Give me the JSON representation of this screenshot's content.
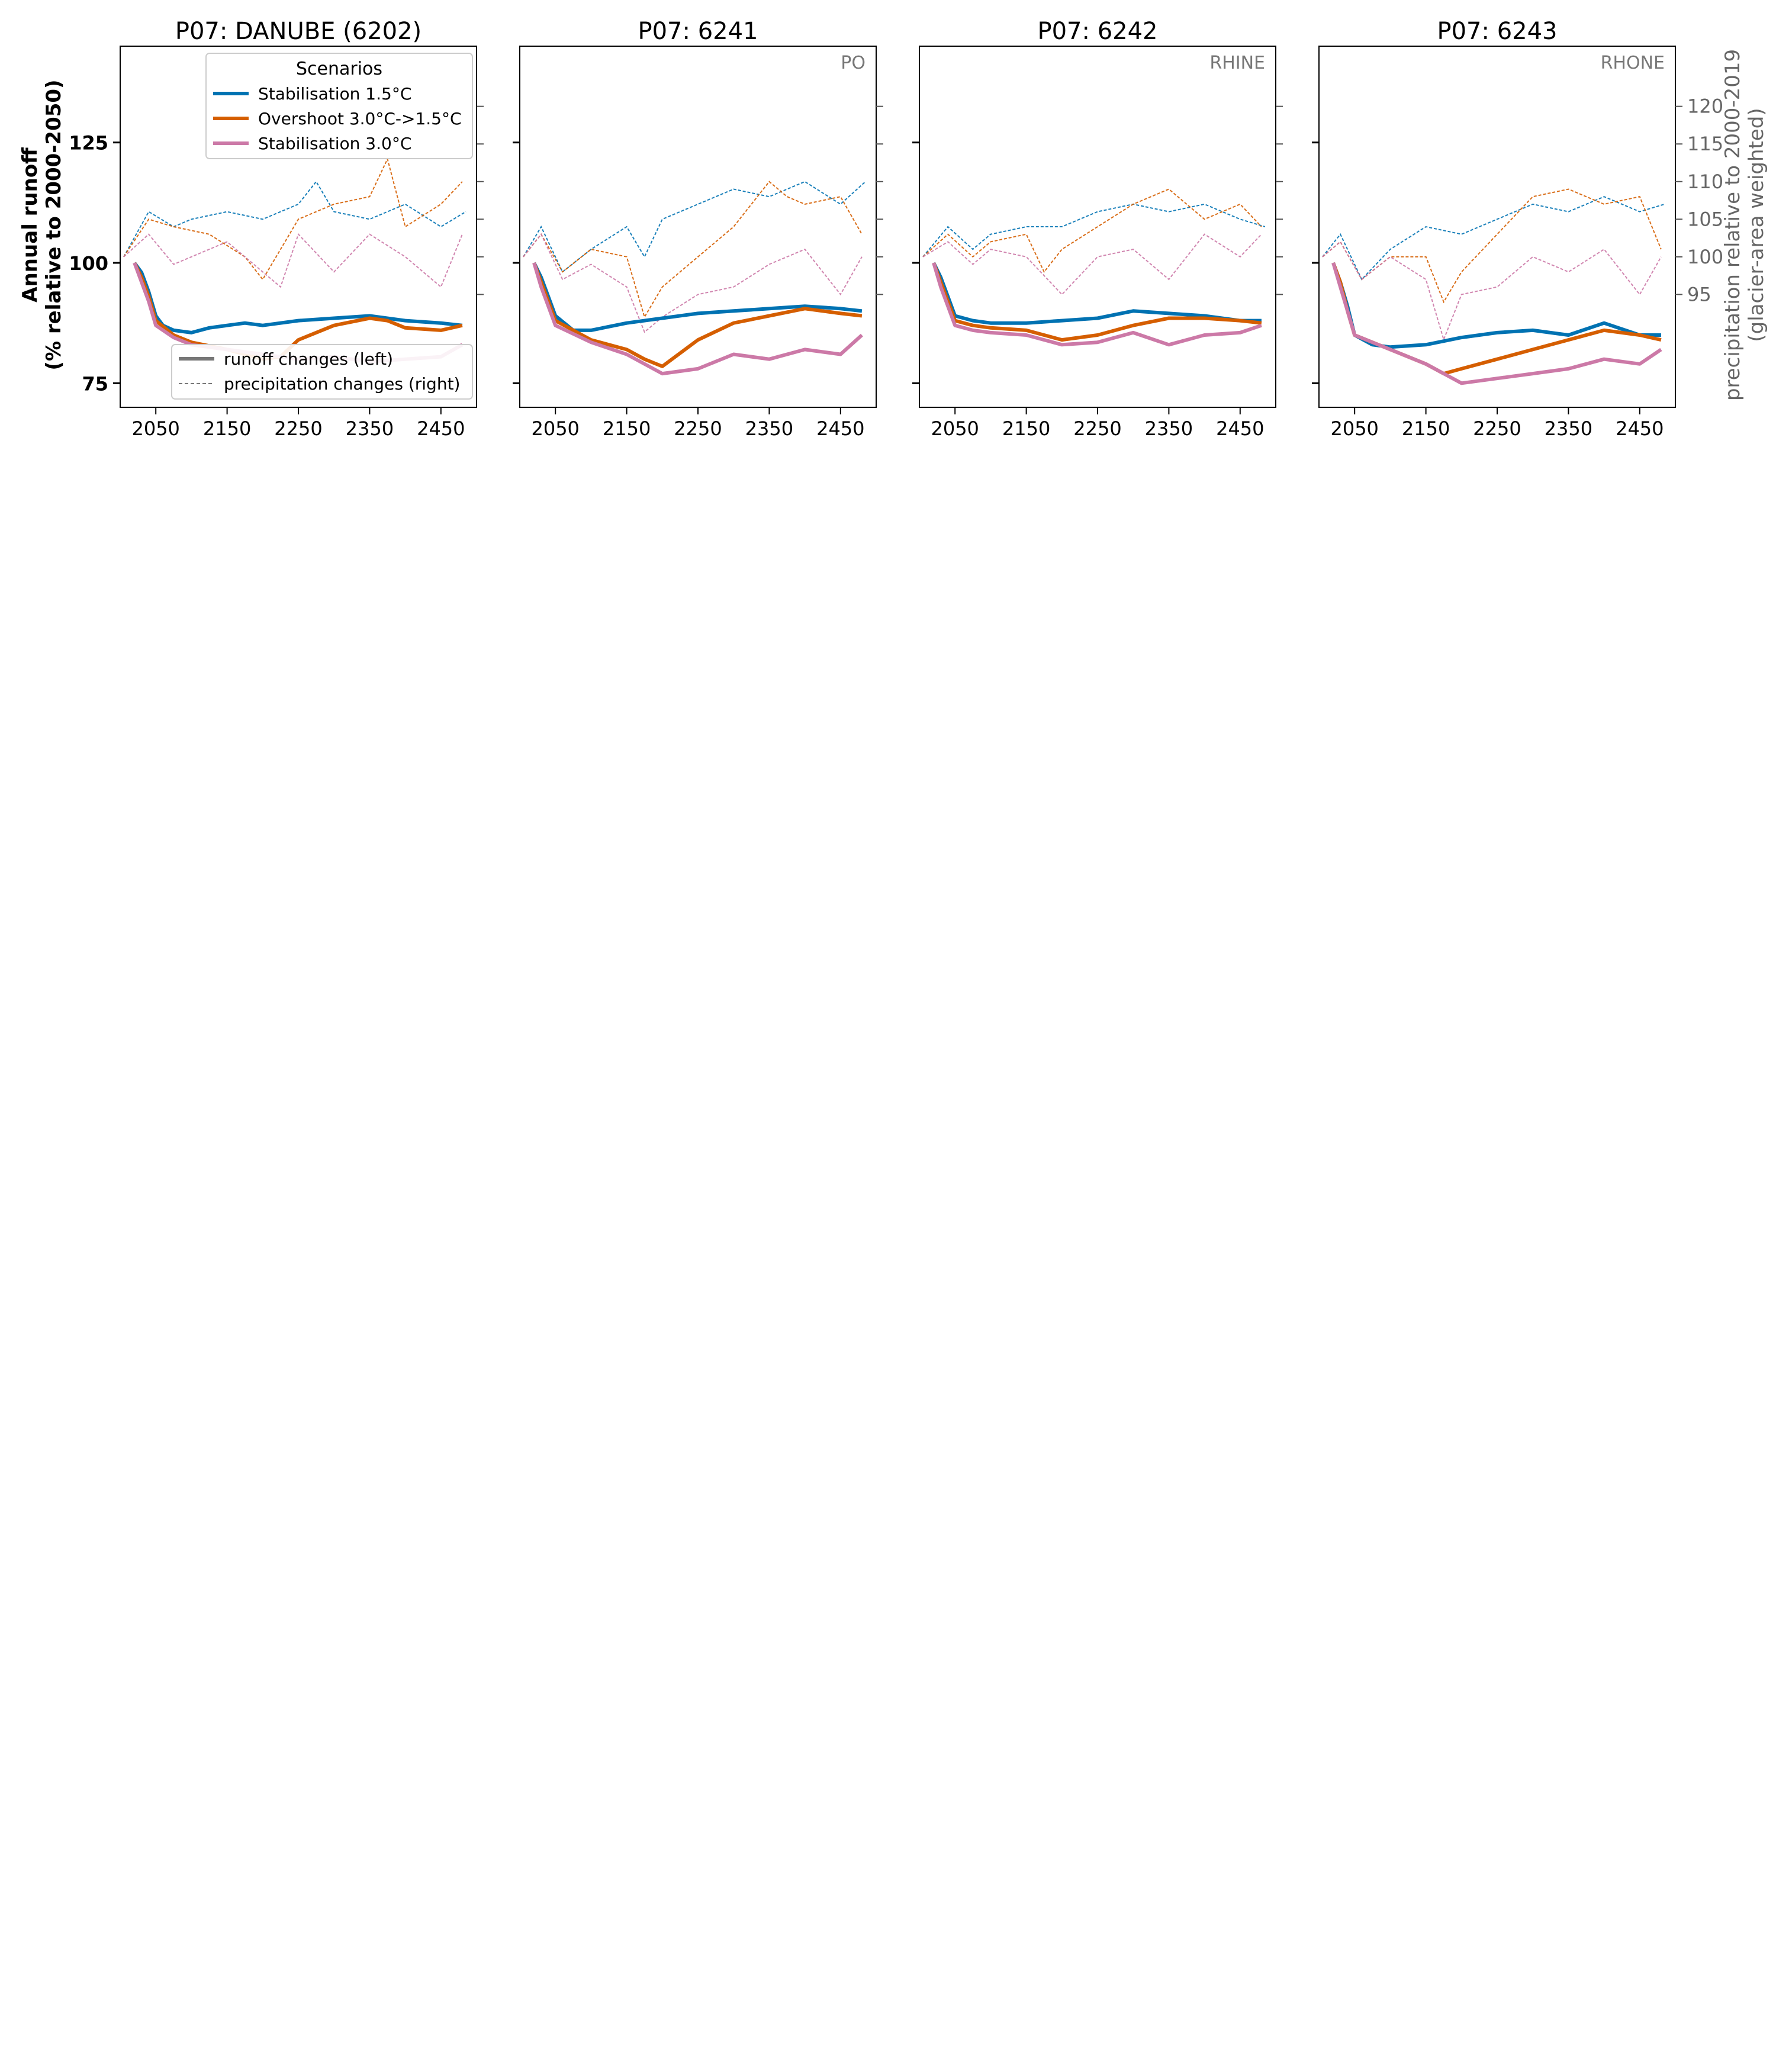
{
  "figure": {
    "left_axis_label": [
      "Annual runoff",
      "(% relative to 2000-2050)"
    ],
    "right_axis_label": [
      "precipitation relative to 2000-2019",
      "(glacier-area weighted)"
    ],
    "legend_title": "Scenarios",
    "legend_style_entries": [
      "runoff changes (left)",
      "precipitation changes (right)"
    ]
  },
  "colors": {
    "Stabilisation 1.5°C": "#0072b2",
    "Overshoot 3.0°C->1.5°C": "#d55e00",
    "Stabilisation 3.0°C": "#cc79a7",
    "axis": "#000000",
    "secondary_axis": "#666666"
  },
  "chart_data": [
    {
      "type": "line",
      "title": "P07: DANUBE (6202)",
      "annotation": "",
      "x_ticks": [
        2050,
        2150,
        2250,
        2350,
        2450
      ],
      "xlim": [
        2000,
        2500
      ],
      "ylim_left": [
        70,
        145
      ],
      "y_ticks_left": [
        75,
        100,
        125
      ],
      "ylim_right": [
        80,
        128
      ],
      "y_ticks_right": [
        95,
        100,
        105,
        110,
        115,
        120
      ],
      "runoff": [
        {
          "name": "Stabilisation 1.5°C",
          "x": [
            2020,
            2030,
            2040,
            2050,
            2060,
            2075,
            2100,
            2125,
            2150,
            2175,
            2200,
            2250,
            2300,
            2350,
            2400,
            2450,
            2480
          ],
          "y": [
            100,
            98,
            94,
            89,
            87,
            86,
            85.5,
            86.5,
            87,
            87.5,
            87,
            88,
            88.5,
            89,
            88,
            87.5,
            87
          ]
        },
        {
          "name": "Overshoot 3.0°C->1.5°C",
          "x": [
            2020,
            2030,
            2040,
            2050,
            2075,
            2100,
            2150,
            2200,
            2225,
            2250,
            2300,
            2350,
            2375,
            2400,
            2450,
            2480
          ],
          "y": [
            100,
            97,
            93,
            88,
            85,
            83.5,
            82,
            80,
            80.5,
            84,
            87,
            88.5,
            88,
            86.5,
            86,
            87
          ]
        },
        {
          "name": "Stabilisation 3.0°C",
          "x": [
            2020,
            2030,
            2040,
            2050,
            2075,
            2100,
            2150,
            2200,
            2250,
            2300,
            2350,
            2400,
            2450,
            2480
          ],
          "y": [
            100,
            96,
            92,
            87,
            84.5,
            83,
            82,
            81,
            80,
            80.5,
            79.5,
            80,
            80.5,
            83
          ]
        }
      ],
      "precipitation": [
        {
          "name": "Stabilisation 1.5°C",
          "x": [
            2005,
            2040,
            2075,
            2100,
            2150,
            2200,
            2250,
            2275,
            2300,
            2350,
            2400,
            2450,
            2485
          ],
          "y": [
            100,
            106,
            104,
            105,
            106,
            105,
            107,
            110,
            106,
            105,
            107,
            104,
            106
          ]
        },
        {
          "name": "Overshoot 3.0°C->1.5°C",
          "x": [
            2005,
            2040,
            2075,
            2125,
            2175,
            2200,
            2250,
            2300,
            2350,
            2375,
            2400,
            2450,
            2480
          ],
          "y": [
            100,
            105,
            104,
            103,
            100,
            97,
            105,
            107,
            108,
            113,
            104,
            107,
            110
          ]
        },
        {
          "name": "Stabilisation 3.0°C",
          "x": [
            2005,
            2040,
            2075,
            2100,
            2150,
            2200,
            2225,
            2250,
            2300,
            2350,
            2400,
            2450,
            2480
          ],
          "y": [
            100,
            103,
            99,
            100,
            102,
            98,
            96,
            103,
            98,
            103,
            100,
            96,
            103
          ]
        }
      ]
    },
    {
      "type": "line",
      "title": "P07: 6241",
      "annotation": "PO",
      "x_ticks": [
        2050,
        2150,
        2250,
        2350,
        2450
      ],
      "xlim": [
        2000,
        2500
      ],
      "ylim_left": [
        70,
        145
      ],
      "y_ticks_left": [
        75,
        100,
        125
      ],
      "ylim_right": [
        80,
        128
      ],
      "y_ticks_right": [
        95,
        100,
        105,
        110,
        115,
        120
      ],
      "runoff": [
        {
          "name": "Stabilisation 1.5°C",
          "x": [
            2020,
            2030,
            2040,
            2050,
            2075,
            2100,
            2150,
            2200,
            2250,
            2300,
            2350,
            2400,
            2450,
            2480
          ],
          "y": [
            100,
            97,
            93,
            89,
            86,
            86,
            87.5,
            88.5,
            89.5,
            90,
            90.5,
            91,
            90.5,
            90
          ]
        },
        {
          "name": "Overshoot 3.0°C->1.5°C",
          "x": [
            2020,
            2030,
            2040,
            2050,
            2100,
            2150,
            2175,
            2200,
            2250,
            2300,
            2350,
            2400,
            2450,
            2480
          ],
          "y": [
            100,
            96,
            92,
            88,
            84,
            82,
            80,
            78.5,
            84,
            87.5,
            89,
            90.5,
            89.5,
            89
          ]
        },
        {
          "name": "Stabilisation 3.0°C",
          "x": [
            2020,
            2030,
            2040,
            2050,
            2100,
            2150,
            2200,
            2250,
            2300,
            2350,
            2400,
            2450,
            2480
          ],
          "y": [
            100,
            95,
            91,
            87,
            83.5,
            81,
            77,
            78,
            81,
            80,
            82,
            81,
            85
          ]
        }
      ],
      "precipitation": [
        {
          "name": "Stabilisation 1.5°C",
          "x": [
            2005,
            2030,
            2060,
            2100,
            2150,
            2175,
            2200,
            2250,
            2300,
            2350,
            2400,
            2450,
            2485
          ],
          "y": [
            100,
            104,
            98,
            101,
            104,
            100,
            105,
            107,
            109,
            108,
            110,
            107,
            110
          ]
        },
        {
          "name": "Overshoot 3.0°C->1.5°C",
          "x": [
            2005,
            2030,
            2060,
            2100,
            2150,
            2175,
            2200,
            2250,
            2300,
            2350,
            2375,
            2400,
            2450,
            2480
          ],
          "y": [
            100,
            103,
            98,
            101,
            100,
            92,
            96,
            100,
            104,
            110,
            108,
            107,
            108,
            103
          ]
        },
        {
          "name": "Stabilisation 3.0°C",
          "x": [
            2005,
            2030,
            2060,
            2100,
            2150,
            2175,
            2200,
            2250,
            2300,
            2350,
            2400,
            2450,
            2480
          ],
          "y": [
            100,
            103,
            97,
            99,
            96,
            90,
            92,
            95,
            96,
            99,
            101,
            95,
            100
          ]
        }
      ]
    },
    {
      "type": "line",
      "title": "P07: 6242",
      "annotation": "RHINE",
      "x_ticks": [
        2050,
        2150,
        2250,
        2350,
        2450
      ],
      "xlim": [
        2000,
        2500
      ],
      "ylim_left": [
        70,
        145
      ],
      "y_ticks_left": [
        75,
        100,
        125
      ],
      "ylim_right": [
        80,
        128
      ],
      "y_ticks_right": [
        95,
        100,
        105,
        110,
        115,
        120
      ],
      "runoff": [
        {
          "name": "Stabilisation 1.5°C",
          "x": [
            2020,
            2030,
            2040,
            2050,
            2075,
            2100,
            2150,
            2200,
            2250,
            2300,
            2350,
            2400,
            2450,
            2480
          ],
          "y": [
            100,
            97,
            93,
            89,
            88,
            87.5,
            87.5,
            88,
            88.5,
            90,
            89.5,
            89,
            88,
            88
          ]
        },
        {
          "name": "Overshoot 3.0°C->1.5°C",
          "x": [
            2020,
            2030,
            2040,
            2050,
            2075,
            2100,
            2150,
            2200,
            2250,
            2300,
            2350,
            2400,
            2450,
            2480
          ],
          "y": [
            100,
            96,
            92,
            88,
            87,
            86.5,
            86,
            84,
            85,
            87,
            88.5,
            88.5,
            88,
            87.5
          ]
        },
        {
          "name": "Stabilisation 3.0°C",
          "x": [
            2020,
            2030,
            2040,
            2050,
            2075,
            2100,
            2150,
            2200,
            2250,
            2300,
            2350,
            2400,
            2450,
            2480
          ],
          "y": [
            100,
            95,
            91,
            87,
            86,
            85.5,
            85,
            83,
            83.5,
            85.5,
            83,
            85,
            85.5,
            87
          ]
        }
      ],
      "precipitation": [
        {
          "name": "Stabilisation 1.5°C",
          "x": [
            2005,
            2040,
            2075,
            2100,
            2150,
            2200,
            2250,
            2300,
            2350,
            2400,
            2450,
            2485
          ],
          "y": [
            100,
            104,
            101,
            103,
            104,
            104,
            106,
            107,
            106,
            107,
            105,
            104
          ]
        },
        {
          "name": "Overshoot 3.0°C->1.5°C",
          "x": [
            2005,
            2040,
            2075,
            2100,
            2150,
            2175,
            2200,
            2250,
            2300,
            2350,
            2400,
            2450,
            2480
          ],
          "y": [
            100,
            103,
            100,
            102,
            103,
            98,
            101,
            104,
            107,
            109,
            105,
            107,
            104
          ]
        },
        {
          "name": "Stabilisation 3.0°C",
          "x": [
            2005,
            2040,
            2075,
            2100,
            2150,
            2200,
            2250,
            2300,
            2350,
            2400,
            2450,
            2480
          ],
          "y": [
            100,
            102,
            99,
            101,
            100,
            95,
            100,
            101,
            97,
            103,
            100,
            103
          ]
        }
      ]
    },
    {
      "type": "line",
      "title": "P07: 6243",
      "annotation": "RHONE",
      "x_ticks": [
        2050,
        2150,
        2250,
        2350,
        2450
      ],
      "xlim": [
        2000,
        2500
      ],
      "ylim_left": [
        70,
        145
      ],
      "y_ticks_left": [
        75,
        100,
        125
      ],
      "ylim_right": [
        80,
        128
      ],
      "y_ticks_right": [
        95,
        100,
        105,
        110,
        115,
        120
      ],
      "runoff": [
        {
          "name": "Stabilisation 1.5°C",
          "x": [
            2020,
            2030,
            2040,
            2050,
            2075,
            2100,
            2150,
            2200,
            2250,
            2300,
            2350,
            2400,
            2450,
            2480
          ],
          "y": [
            100,
            96,
            91,
            85,
            83,
            82.5,
            83,
            84.5,
            85.5,
            86,
            85,
            87.5,
            85,
            85
          ]
        },
        {
          "name": "Overshoot 3.0°C->1.5°C",
          "x": [
            2020,
            2030,
            2040,
            2050,
            2100,
            2150,
            2175,
            2200,
            2250,
            2300,
            2350,
            2400,
            2450,
            2480
          ],
          "y": [
            100,
            96,
            90,
            85,
            82,
            79,
            77,
            78,
            80,
            82,
            84,
            86,
            85,
            84
          ]
        },
        {
          "name": "Stabilisation 3.0°C",
          "x": [
            2020,
            2030,
            2040,
            2050,
            2100,
            2150,
            2200,
            2250,
            2300,
            2350,
            2400,
            2450,
            2480
          ],
          "y": [
            100,
            95,
            90,
            85,
            82,
            79,
            75,
            76,
            77,
            78,
            80,
            79,
            82
          ]
        }
      ],
      "precipitation": [
        {
          "name": "Stabilisation 1.5°C",
          "x": [
            2005,
            2030,
            2060,
            2100,
            2150,
            2200,
            2250,
            2300,
            2350,
            2400,
            2450,
            2485
          ],
          "y": [
            100,
            103,
            97,
            101,
            104,
            103,
            105,
            107,
            106,
            108,
            106,
            107
          ]
        },
        {
          "name": "Overshoot 3.0°C->1.5°C",
          "x": [
            2005,
            2030,
            2060,
            2100,
            2150,
            2175,
            2200,
            2250,
            2300,
            2350,
            2400,
            2450,
            2480
          ],
          "y": [
            100,
            102,
            97,
            100,
            100,
            94,
            98,
            103,
            108,
            109,
            107,
            108,
            101
          ]
        },
        {
          "name": "Stabilisation 3.0°C",
          "x": [
            2005,
            2030,
            2060,
            2100,
            2150,
            2175,
            2200,
            2250,
            2300,
            2350,
            2400,
            2450,
            2480
          ],
          "y": [
            100,
            102,
            97,
            100,
            97,
            89,
            95,
            96,
            100,
            98,
            101,
            95,
            100
          ]
        }
      ]
    }
  ]
}
